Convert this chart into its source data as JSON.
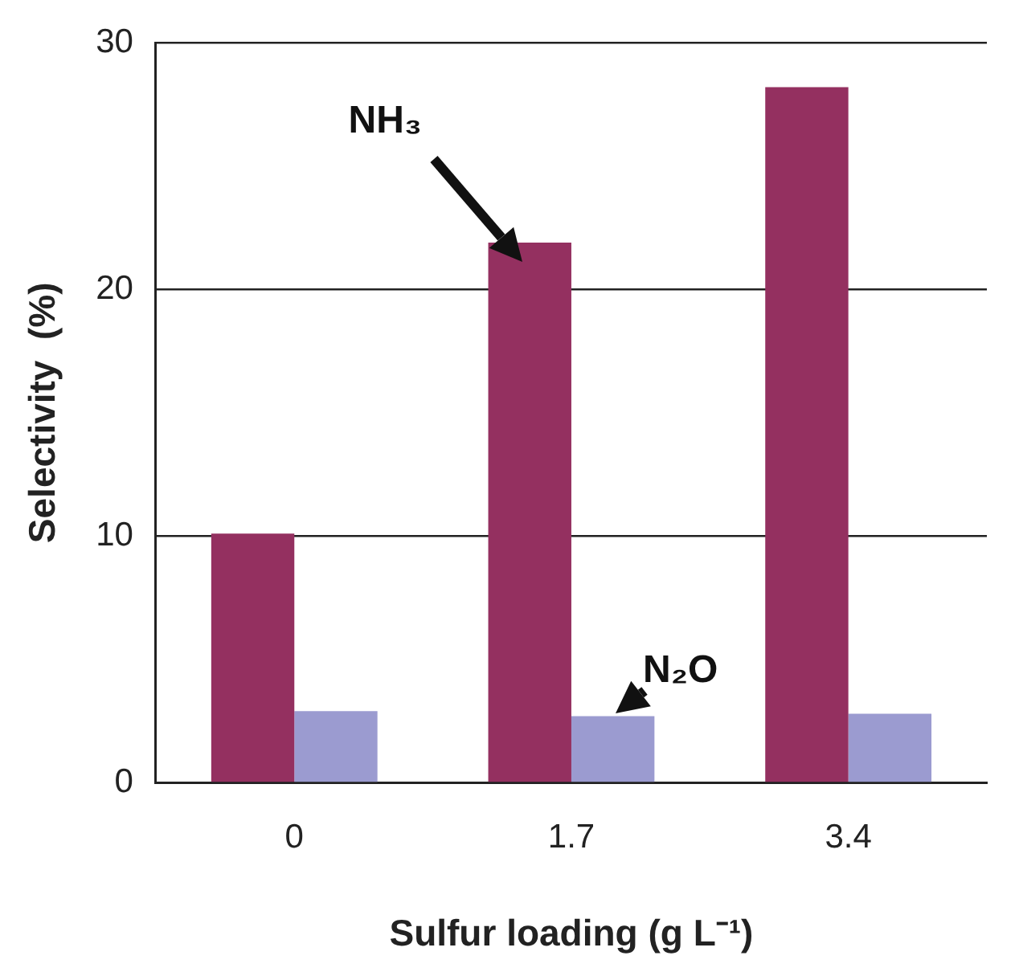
{
  "chart_data": {
    "type": "bar",
    "xlabel": "Sulfur loading (g L⁻¹)",
    "ylabel": "Selectivity  (%)",
    "categories": [
      "0",
      "1.7",
      "3.4"
    ],
    "series": [
      {
        "name": "NH₃",
        "color": "#943060",
        "values": [
          10.1,
          21.9,
          28.2
        ]
      },
      {
        "name": "N₂O",
        "color": "#9b9bd0",
        "values": [
          2.9,
          2.7,
          2.8
        ]
      }
    ],
    "ylim": [
      0,
      30
    ],
    "yticks": [
      0,
      10,
      20,
      30
    ],
    "grid": "y",
    "legend": false
  }
}
